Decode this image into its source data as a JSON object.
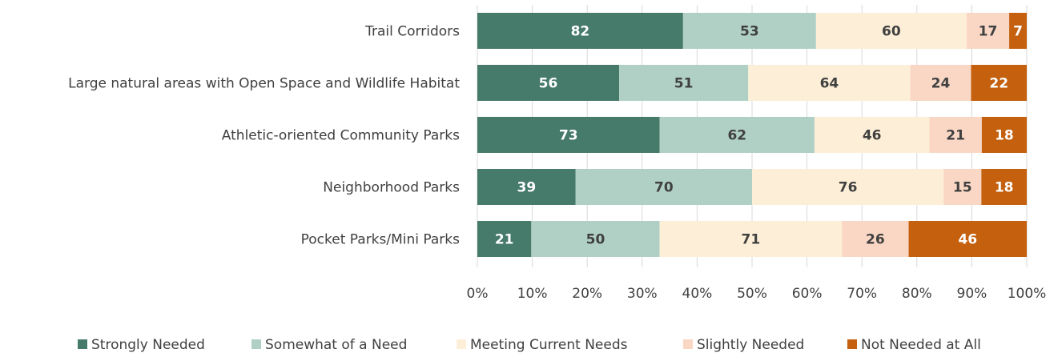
{
  "chart_data": {
    "type": "bar",
    "orientation": "horizontal",
    "stacking": "percent",
    "categories": [
      "Trail Corridors",
      "Large natural areas with Open Space and Wildlife Habitat",
      "Athletic-oriented Community Parks",
      "Neighborhood Parks",
      "Pocket Parks/Mini Parks"
    ],
    "series": [
      {
        "name": "Strongly Needed",
        "color": "#467a6a",
        "label_color": "#ffffff",
        "values": [
          82,
          56,
          73,
          39,
          21
        ]
      },
      {
        "name": "Somewhat of a Need",
        "color": "#b0d0c6",
        "label_color": "#404040",
        "values": [
          53,
          51,
          62,
          70,
          50
        ]
      },
      {
        "name": "Meeting Current Needs",
        "color": "#fdefd7",
        "label_color": "#404040",
        "values": [
          60,
          64,
          46,
          76,
          71
        ]
      },
      {
        "name": "Slightly Needed",
        "color": "#f9d7c4",
        "label_color": "#404040",
        "values": [
          17,
          24,
          21,
          15,
          26
        ]
      },
      {
        "name": "Not Needed at All",
        "color": "#c4600e",
        "label_color": "#ffffff",
        "values": [
          7,
          22,
          18,
          18,
          46
        ]
      }
    ],
    "x_ticks": [
      "0%",
      "10%",
      "20%",
      "30%",
      "40%",
      "50%",
      "60%",
      "70%",
      "80%",
      "90%",
      "100%"
    ],
    "xlim": [
      0,
      100
    ],
    "grid": true,
    "legend_position": "bottom"
  }
}
